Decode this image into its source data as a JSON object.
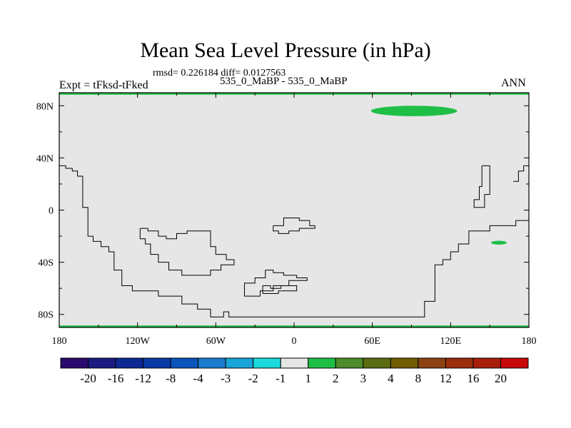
{
  "chart_data": {
    "type": "contour_map",
    "title": "Mean Sea Level Pressure (in hPa)",
    "stats_text": "rmsd= 0.226184 diff= 0.0127563",
    "left_label": "Expt = tFksd-tFked",
    "center_label": "535_0_MaBP - 535_0_MaBP",
    "right_label": "ANN",
    "xlim": [
      -180,
      180
    ],
    "ylim": [
      -90,
      90
    ],
    "x_ticks": [
      {
        "value": -180,
        "label": "180"
      },
      {
        "value": -120,
        "label": "120W"
      },
      {
        "value": -60,
        "label": "60W"
      },
      {
        "value": 0,
        "label": "0"
      },
      {
        "value": 60,
        "label": "60E"
      },
      {
        "value": 120,
        "label": "120E"
      },
      {
        "value": 180,
        "label": "180"
      }
    ],
    "y_ticks": [
      {
        "value": 80,
        "label": "80N"
      },
      {
        "value": 40,
        "label": "40N"
      },
      {
        "value": 0,
        "label": "0"
      },
      {
        "value": -40,
        "label": "40S"
      },
      {
        "value": -80,
        "label": "80S"
      }
    ],
    "background_level": "-1 to 1",
    "anomaly_regions": [
      {
        "name": "arctic-positive-anomaly",
        "level": "1 to 2",
        "center_lon": 92,
        "center_lat": 76,
        "lon_halfwidth": 33,
        "lat_halfwidth": 4
      },
      {
        "name": "pacific-positive-anomaly",
        "level": "1 to 2",
        "center_lon": 157,
        "center_lat": -25,
        "lon_halfwidth": 6,
        "lat_halfwidth": 1.5
      },
      {
        "name": "north-edge-positive-band",
        "level": "1 to 2",
        "lat_from": 88.5,
        "lat_to": 90
      },
      {
        "name": "south-edge-positive-band",
        "level": "1 to 2",
        "lat_from": -90,
        "lat_to": -88.5
      }
    ],
    "coastlines": [
      {
        "name": "west-continent-coastline",
        "points": [
          [
            -180,
            34
          ],
          [
            -175,
            34
          ],
          [
            -175,
            32
          ],
          [
            -170,
            32
          ],
          [
            -170,
            30
          ],
          [
            -166,
            30
          ],
          [
            -166,
            26
          ],
          [
            -162,
            26
          ],
          [
            -162,
            2
          ],
          [
            -158,
            2
          ],
          [
            -158,
            -20
          ],
          [
            -154,
            -20
          ],
          [
            -154,
            -24
          ],
          [
            -148,
            -24
          ],
          [
            -148,
            -28
          ],
          [
            -142,
            -28
          ],
          [
            -142,
            -32
          ],
          [
            -138,
            -32
          ],
          [
            -138,
            -46
          ],
          [
            -132,
            -46
          ],
          [
            -132,
            -58
          ],
          [
            -124,
            -58
          ],
          [
            -124,
            -62
          ],
          [
            -104,
            -62
          ],
          [
            -104,
            -66
          ],
          [
            -86,
            -66
          ],
          [
            -86,
            -72
          ],
          [
            -74,
            -72
          ],
          [
            -74,
            -76
          ],
          [
            -64,
            -76
          ],
          [
            -64,
            -82
          ],
          [
            -54,
            -82
          ],
          [
            -54,
            -78
          ],
          [
            -50,
            -78
          ],
          [
            -50,
            -82
          ],
          [
            -10,
            -82
          ],
          [
            100,
            -82
          ],
          [
            100,
            -70
          ],
          [
            108,
            -70
          ],
          [
            108,
            -42
          ],
          [
            114,
            -42
          ],
          [
            114,
            -38
          ],
          [
            120,
            -38
          ],
          [
            120,
            -32
          ],
          [
            126,
            -32
          ],
          [
            126,
            -26
          ],
          [
            134,
            -26
          ],
          [
            134,
            -16
          ],
          [
            150,
            -16
          ],
          [
            150,
            -12
          ],
          [
            170,
            -12
          ],
          [
            170,
            -8
          ],
          [
            180,
            -8
          ]
        ]
      },
      {
        "name": "east-continent-coastline",
        "points": [
          [
            180,
            34
          ],
          [
            176,
            34
          ],
          [
            176,
            30
          ],
          [
            172,
            30
          ],
          [
            172,
            22
          ],
          [
            168,
            22
          ]
        ]
      },
      {
        "name": "east-peninsula-coastline",
        "points": [
          [
            144,
            34
          ],
          [
            150,
            34
          ],
          [
            150,
            12
          ],
          [
            146,
            12
          ],
          [
            146,
            2
          ],
          [
            138,
            2
          ],
          [
            138,
            8
          ],
          [
            142,
            8
          ],
          [
            142,
            18
          ],
          [
            144,
            18
          ],
          [
            144,
            34
          ]
        ]
      },
      {
        "name": "central-island-coastline",
        "points": [
          [
            -118,
            -14
          ],
          [
            -112,
            -14
          ],
          [
            -112,
            -16
          ],
          [
            -104,
            -16
          ],
          [
            -104,
            -20
          ],
          [
            -98,
            -20
          ],
          [
            -98,
            -22
          ],
          [
            -90,
            -22
          ],
          [
            -90,
            -18
          ],
          [
            -82,
            -18
          ],
          [
            -82,
            -16
          ],
          [
            -64,
            -16
          ],
          [
            -64,
            -28
          ],
          [
            -60,
            -28
          ],
          [
            -60,
            -34
          ],
          [
            -52,
            -34
          ],
          [
            -52,
            -38
          ],
          [
            -46,
            -38
          ],
          [
            -46,
            -42
          ],
          [
            -56,
            -42
          ],
          [
            -56,
            -46
          ],
          [
            -64,
            -46
          ],
          [
            -64,
            -50
          ],
          [
            -86,
            -50
          ],
          [
            -86,
            -46
          ],
          [
            -96,
            -46
          ],
          [
            -96,
            -40
          ],
          [
            -104,
            -40
          ],
          [
            -104,
            -34
          ],
          [
            -110,
            -34
          ],
          [
            -110,
            -26
          ],
          [
            -114,
            -26
          ],
          [
            -114,
            -22
          ],
          [
            -118,
            -22
          ],
          [
            -118,
            -14
          ]
        ]
      },
      {
        "name": "equatorial-island-coastline",
        "points": [
          [
            -16,
            -12
          ],
          [
            -8,
            -12
          ],
          [
            -8,
            -6
          ],
          [
            4,
            -6
          ],
          [
            4,
            -8
          ],
          [
            12,
            -8
          ],
          [
            12,
            -12
          ],
          [
            16,
            -12
          ],
          [
            16,
            -14
          ],
          [
            4,
            -14
          ],
          [
            4,
            -16
          ],
          [
            -4,
            -16
          ],
          [
            -4,
            -18
          ],
          [
            -12,
            -18
          ],
          [
            -12,
            -16
          ],
          [
            -16,
            -16
          ],
          [
            -16,
            -12
          ]
        ]
      },
      {
        "name": "southern-island-coastline",
        "points": [
          [
            -22,
            -46
          ],
          [
            -16,
            -46
          ],
          [
            -16,
            -48
          ],
          [
            -8,
            -48
          ],
          [
            -8,
            -50
          ],
          [
            2,
            -50
          ],
          [
            2,
            -52
          ],
          [
            10,
            -52
          ],
          [
            10,
            -54
          ],
          [
            -4,
            -54
          ],
          [
            -4,
            -58
          ],
          [
            -16,
            -58
          ],
          [
            -16,
            -62
          ],
          [
            -26,
            -62
          ],
          [
            -26,
            -66
          ],
          [
            -38,
            -66
          ],
          [
            -38,
            -56
          ],
          [
            -30,
            -56
          ],
          [
            -30,
            -52
          ],
          [
            -22,
            -52
          ],
          [
            -22,
            -46
          ]
        ]
      },
      {
        "name": "southern-island-inner-coastline",
        "points": [
          [
            -24,
            -58
          ],
          [
            -18,
            -58
          ],
          [
            -18,
            -60
          ],
          [
            -10,
            -60
          ],
          [
            -10,
            -58
          ],
          [
            2,
            -58
          ],
          [
            2,
            -62
          ],
          [
            -12,
            -62
          ],
          [
            -12,
            -64
          ],
          [
            -24,
            -64
          ],
          [
            -24,
            -58
          ]
        ]
      }
    ],
    "colorbar": {
      "labels": [
        "-20",
        "-16",
        "-12",
        "-8",
        "-4",
        "-3",
        "-2",
        "-1",
        "1",
        "2",
        "3",
        "4",
        "8",
        "12",
        "16",
        "20"
      ],
      "colors": [
        "#2a0a6e",
        "#1a1a80",
        "#0d2894",
        "#0a3aa6",
        "#0a55bc",
        "#1a7bd0",
        "#1aa5d8",
        "#1adadc",
        "#e6e6e6",
        "#1fbf47",
        "#4f8c2b",
        "#5c6c13",
        "#715c00",
        "#8c4212",
        "#9a2d0c",
        "#a81e0a",
        "#c80808"
      ]
    }
  }
}
